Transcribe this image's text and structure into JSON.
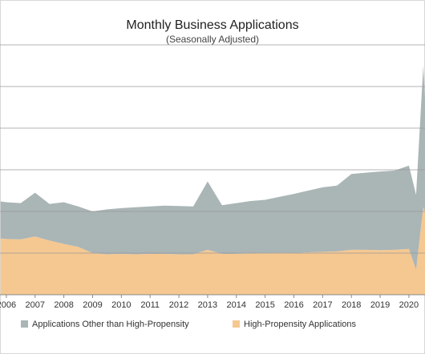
{
  "chart_data": {
    "type": "stacked-area",
    "title": "Monthly Business Applications",
    "subtitle": "(Seasonally Adjusted)",
    "x": [
      2005.8,
      2006,
      2006.5,
      2007,
      2007.5,
      2008,
      2008.5,
      2009,
      2009.5,
      2010,
      2010.5,
      2011,
      2011.5,
      2012,
      2012.5,
      2013,
      2013.5,
      2014,
      2014.5,
      2015,
      2015.5,
      2016,
      2016.5,
      2017,
      2017.5,
      2018,
      2018.5,
      2019,
      2019.5,
      2020,
      2020.25,
      2020.5,
      2020.56
    ],
    "series": [
      {
        "name": "Applications Other than High-Propensity",
        "color": "#aab5b6",
        "values": [
          89,
          88,
          87,
          105,
          88,
          100,
          97,
          100,
          108,
          110,
          113,
          114,
          116,
          116,
          115,
          164,
          117,
          122,
          126,
          128,
          134,
          142,
          148,
          155,
          158,
          182,
          185,
          189,
          190,
          200,
          180,
          340,
          270
        ]
      },
      {
        "name": "High-Propensity Applications",
        "color": "#f5c891",
        "values": [
          135,
          134,
          133,
          140,
          130,
          122,
          115,
          100,
          97,
          98,
          97,
          98,
          98,
          97,
          97,
          108,
          98,
          98,
          99,
          100,
          101,
          100,
          102,
          103,
          104,
          108,
          108,
          107,
          108,
          110,
          60,
          210,
          200
        ]
      }
    ],
    "xlim": [
      2005.78,
      2020.56
    ],
    "xticks": [
      2006,
      2007,
      2008,
      2009,
      2010,
      2011,
      2012,
      2013,
      2014,
      2015,
      2016,
      2017,
      2018,
      2019,
      2020
    ],
    "ylim": [
      0,
      700
    ],
    "yticks": [
      100,
      200,
      300,
      400,
      500,
      600
    ],
    "ytick_labels": false,
    "grid": true
  }
}
